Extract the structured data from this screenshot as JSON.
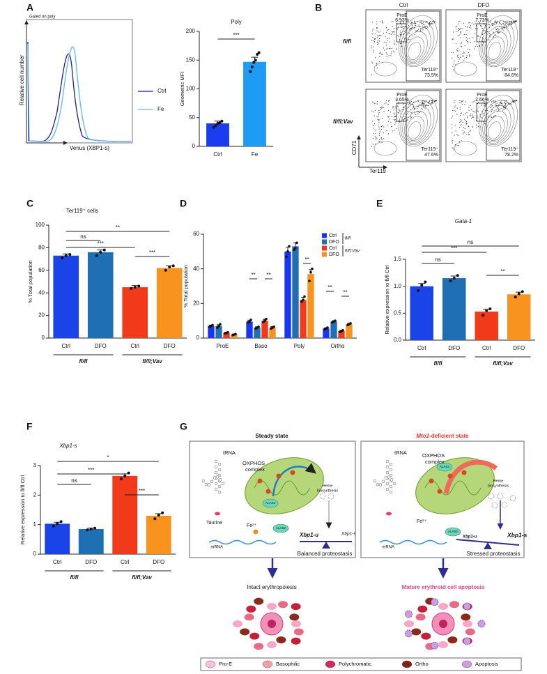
{
  "panel_labels": [
    "A",
    "B",
    "C",
    "D",
    "E",
    "F",
    "G"
  ],
  "histogram": {
    "gate_label": "Gated on poly",
    "ylabel": "Relative cell number",
    "xlabel": "Venus (XBP1-s)",
    "legend": [
      "Ctrl",
      "Fe"
    ],
    "colors": [
      "#1c1c9e",
      "#5fb8f2"
    ]
  },
  "flow": {
    "columns": [
      "Ctrl",
      "DFO"
    ],
    "rows": [
      "fl/fl",
      "fl/fl;Vav"
    ],
    "ylabel": "CD71",
    "xlabel": "Ter119",
    "gates": [
      {
        "proe": "ProE",
        "proe_pct": "6.93%",
        "ter": "Ter119⁺",
        "ter_pct": "73.5%"
      },
      {
        "proe": "ProE",
        "proe_pct": "7.73%",
        "ter": "Ter119⁺",
        "ter_pct": "84.6%"
      },
      {
        "proe": "ProE",
        "proe_pct": "3.65%",
        "ter": "Ter119⁺",
        "ter_pct": "47.6%"
      },
      {
        "proe": "ProE",
        "proe_pct": "2.66%",
        "ter": "Ter119⁺",
        "ter_pct": "78.2%"
      }
    ]
  },
  "chart_data": [
    {
      "type": "bar",
      "title": "Poly",
      "ylabel": "Geometric MFI",
      "categories": [
        "Ctrl",
        "Fe"
      ],
      "values": [
        40,
        147
      ],
      "errors": [
        4,
        8
      ],
      "points": [
        [
          33,
          36,
          40,
          41,
          44
        ],
        [
          130,
          138,
          146,
          150,
          160,
          163
        ]
      ],
      "colors": [
        "#1b3df0",
        "#1e9bf5"
      ],
      "ylim": [
        0,
        200
      ],
      "yticks": [
        0,
        50,
        100,
        150,
        200
      ],
      "comparisons": [
        "***"
      ]
    },
    {
      "type": "bar",
      "title": "Ter119⁺ cells",
      "ylabel": "% Total population",
      "categories": [
        "Ctrl",
        "DFO",
        "Ctrl",
        "DFO"
      ],
      "values": [
        73,
        76,
        45,
        62
      ],
      "errors": [
        1.5,
        2,
        1.5,
        2
      ],
      "points": [
        [
          71,
          73,
          74
        ],
        [
          73,
          76,
          78
        ],
        [
          44,
          45,
          46
        ],
        [
          60,
          63,
          64
        ]
      ],
      "colors": [
        "#1a44e8",
        "#1f6fb5",
        "#f03a1a",
        "#f7931e"
      ],
      "ylim": [
        0,
        100
      ],
      "yticks": [
        0,
        20,
        40,
        60,
        80,
        100
      ],
      "groups": [
        "fl/fl",
        "fl/fl;Vav"
      ],
      "comparisons": [
        "**",
        "ns",
        "***",
        "***"
      ]
    },
    {
      "type": "bar",
      "ylabel": "% Total population",
      "categories": [
        "ProE",
        "Baso",
        "Poly",
        "Ortho"
      ],
      "series": [
        {
          "name": "Ctrl",
          "color": "#1a36f0",
          "values": [
            7,
            9.5,
            50,
            5.5
          ],
          "errors": [
            0.5,
            0.8,
            2.5,
            0.4
          ],
          "points": [
            [
              6.5,
              7,
              7.5
            ],
            [
              9,
              9.5,
              10.5
            ],
            [
              47,
              50,
              53
            ],
            [
              5,
              5.5,
              6
            ]
          ]
        },
        {
          "name": "DFO",
          "color": "#1f6fb5",
          "values": [
            7,
            6,
            53,
            9.5
          ],
          "errors": [
            0.7,
            0.5,
            2,
            0.5
          ],
          "points": [
            [
              6,
              7,
              8
            ],
            [
              5.5,
              6,
              6.5
            ],
            [
              51,
              52,
              55
            ],
            [
              9,
              9.5,
              10
            ]
          ]
        },
        {
          "name": "Ctrl",
          "color": "#f03a1a",
          "values": [
            3,
            10,
            22,
            4
          ],
          "errors": [
            0.3,
            0.8,
            1.5,
            0.4
          ],
          "points": [
            [
              2.7,
              3,
              3.3
            ],
            [
              9.3,
              10,
              11
            ],
            [
              21,
              22,
              24
            ],
            [
              3.5,
              4,
              4.5
            ]
          ]
        },
        {
          "name": "DFO",
          "color": "#f7931e",
          "values": [
            2,
            6,
            37,
            8
          ],
          "errors": [
            0.3,
            0.6,
            2.5,
            0.5
          ],
          "points": [
            [
              1.7,
              2,
              2.3
            ],
            [
              5.5,
              6,
              6.5
            ],
            [
              33,
              38,
              40
            ],
            [
              7.5,
              8,
              8.5
            ]
          ]
        }
      ],
      "legend_groups": [
        "fl/fl",
        "fl/fl;Vav"
      ],
      "ylim": [
        0,
        60
      ],
      "yticks": [
        0,
        20,
        40,
        60
      ],
      "comparisons": [
        "**",
        "**",
        "**",
        "**",
        "**"
      ]
    },
    {
      "type": "bar",
      "title": "Gata-1",
      "ylabel": "Relative expression to fl/fl Ctrl",
      "categories": [
        "Ctrl",
        "DFO",
        "Ctrl",
        "DFO"
      ],
      "values": [
        1.0,
        1.15,
        0.53,
        0.85
      ],
      "errors": [
        0.05,
        0.04,
        0.04,
        0.04
      ],
      "points": [
        [
          0.92,
          1.02,
          1.08
        ],
        [
          1.1,
          1.15,
          1.2
        ],
        [
          0.46,
          0.55,
          0.58
        ],
        [
          0.8,
          0.86,
          0.9
        ]
      ],
      "colors": [
        "#1a44e8",
        "#1f6fb5",
        "#f03a1a",
        "#f7931e"
      ],
      "ylim": [
        0,
        1.5
      ],
      "yticks": [
        {
          "value": 0,
          "label": "0.0"
        },
        0.5,
        {
          "value": 1,
          "label": "1.0"
        },
        1.5
      ],
      "groups": [
        "fl/fl",
        "fl/fl;Vav"
      ],
      "comparisons": [
        "ns",
        "***",
        "ns",
        "**"
      ]
    },
    {
      "type": "bar",
      "title": "Xbp1-s",
      "ylabel": "Relative expression to fl/fl Ctrl",
      "categories": [
        "Ctrl",
        "DFO",
        "Ctrl",
        "DFO"
      ],
      "values": [
        1.03,
        0.85,
        2.65,
        1.3
      ],
      "errors": [
        0.05,
        0.03,
        0.07,
        0.07
      ],
      "points": [
        [
          0.95,
          1.03,
          1.1
        ],
        [
          0.82,
          0.85,
          0.88
        ],
        [
          2.55,
          2.65,
          2.75
        ],
        [
          1.2,
          1.32,
          1.4
        ]
      ],
      "colors": [
        "#1a44e8",
        "#1f6fb5",
        "#f03a1a",
        "#f7931e"
      ],
      "ylim": [
        0,
        3
      ],
      "yticks": [
        0,
        1,
        2,
        3
      ],
      "groups": [
        "fl/fl",
        "fl/fl;Vav"
      ],
      "comparisons": [
        "*",
        "***",
        "ns",
        "***"
      ]
    }
  ],
  "diagram": {
    "steady": {
      "title": "Steady state",
      "trna": "tRNA",
      "oxphos": [
        "OXPHOS",
        "complex"
      ],
      "heme": [
        "Heme",
        "biosynthesis"
      ],
      "taurine": "Taurine",
      "alas2_mito": "ALAS2",
      "fe": "Fe²⁺",
      "alas2": "ALAS2",
      "mrna": "mRNA",
      "xbp1u": "Xbp1-u",
      "xbp1s": "Xbp1-s",
      "state": "Balanced proteostasis",
      "outcome": "Intact erythropoiesis"
    },
    "deficient": {
      "title_gene": "Mto1",
      "title_rest": "-deficient state",
      "trna": "tRNA",
      "oxphos": [
        "OXPHOS",
        "complex"
      ],
      "heme": [
        "Heme",
        "biosynthesis"
      ],
      "alas2_mito": "ALAS2",
      "fe": "Fe²⁺",
      "alas2": "ALAS2",
      "mrna": "mRNA",
      "xbp1u": "Xbp1-u",
      "xbp1s": "Xbp1-s",
      "state": "Stressed proteostasis",
      "outcome": "Mature erythroid cell apoptosis"
    },
    "legend": [
      "Pro-E",
      "Basophilic",
      "Polychromatic",
      "Ortho",
      "Apoptosis"
    ]
  }
}
